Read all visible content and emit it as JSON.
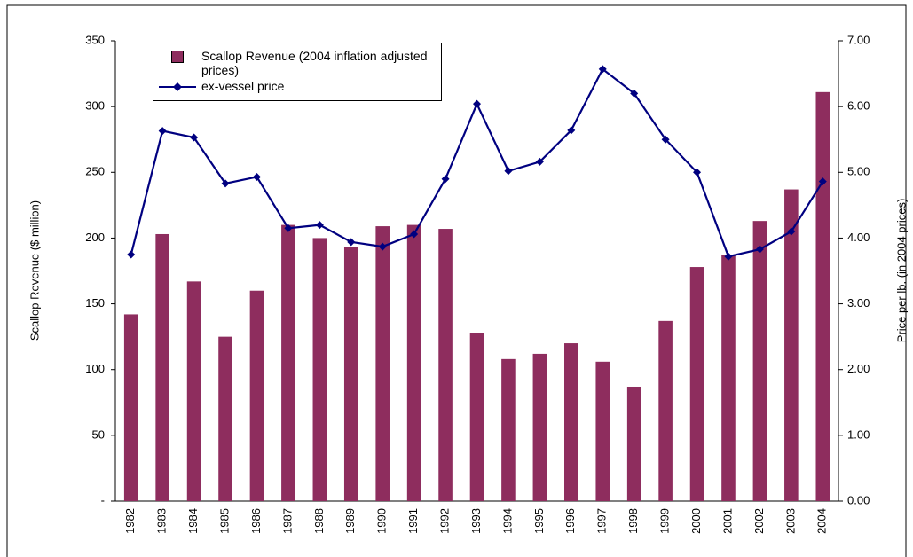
{
  "chart_data": {
    "type": "bar",
    "ylabel": "Scallop Revenue ($ million)",
    "y2label": "Price per lb. (in 2004 prices)",
    "categories": [
      "1982",
      "1983",
      "1984",
      "1985",
      "1986",
      "1987",
      "1988",
      "1989",
      "1990",
      "1991",
      "1992",
      "1993",
      "1994",
      "1995",
      "1996",
      "1997",
      "1998",
      "1999",
      "2000",
      "2001",
      "2002",
      "2003",
      "2004"
    ],
    "series": [
      {
        "name": "Scallop Revenue (2004 inflation adjusted prices)",
        "type": "bar",
        "color": "#8e2d5e",
        "values": [
          142,
          203,
          167,
          125,
          160,
          210,
          200,
          193,
          209,
          210,
          207,
          128,
          108,
          112,
          120,
          106,
          87,
          137,
          178,
          187,
          213,
          237,
          311
        ]
      },
      {
        "name": "ex-vessel price",
        "type": "line",
        "axis": "y2",
        "color": "#000080",
        "marker": "diamond",
        "values": [
          3.75,
          5.63,
          5.53,
          4.83,
          4.93,
          4.15,
          4.2,
          3.94,
          3.87,
          4.06,
          4.9,
          6.04,
          5.02,
          5.16,
          5.64,
          6.57,
          6.2,
          5.5,
          5.0,
          3.72,
          3.83,
          4.1,
          4.86
        ]
      }
    ],
    "ylim": [
      0,
      350
    ],
    "yticks": [
      {
        "value": 0,
        "label": "-"
      },
      50,
      100,
      150,
      200,
      250,
      300,
      350
    ],
    "y2lim": [
      0,
      7
    ],
    "y2ticks": [
      {
        "value": 0,
        "label": "0.00"
      },
      {
        "value": 1,
        "label": "1.00"
      },
      {
        "value": 2,
        "label": "2.00"
      },
      {
        "value": 3,
        "label": "3.00"
      },
      {
        "value": 4,
        "label": "4.00"
      },
      {
        "value": 5,
        "label": "5.00"
      },
      {
        "value": 6,
        "label": "6.00"
      },
      {
        "value": 7,
        "label": "7.00"
      }
    ],
    "grid": false,
    "legend": "upper left"
  }
}
